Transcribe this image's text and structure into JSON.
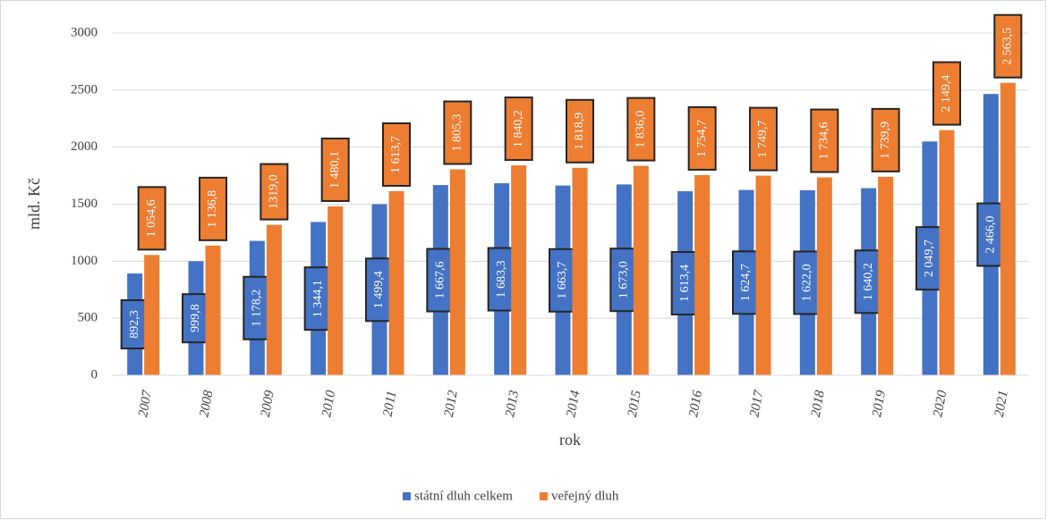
{
  "chart_data": {
    "type": "bar",
    "y_label": "mld. Kč",
    "x_label": "rok",
    "categories": [
      "2007",
      "2008",
      "2009",
      "2010",
      "2011",
      "2012",
      "2013",
      "2014",
      "2015",
      "2016",
      "2017",
      "2018",
      "2019",
      "2020",
      "2021"
    ],
    "series": [
      {
        "name": "státní dluh celkem",
        "color": "#4472c4",
        "values": [
          892.3,
          999.8,
          1178.2,
          1344.1,
          1499.4,
          1667.6,
          1683.3,
          1663.7,
          1673.0,
          1613.4,
          1624.7,
          1622.0,
          1640.2,
          2049.7,
          2466.0
        ],
        "value_labels": [
          "892,3",
          "999,8",
          "1 178,2",
          "1 344,1",
          "1 499,4",
          "1 667,6",
          "1 683,3",
          "1 663,7",
          "1 673,0",
          "1 613,4",
          "1 624,7",
          "1 622,0",
          "1 640,2",
          "2 049,7",
          "2 466,0"
        ]
      },
      {
        "name": "veřejný dluh",
        "color": "#ed7d31",
        "values": [
          1054.6,
          1136.8,
          1319.0,
          1480.1,
          1613.7,
          1805.3,
          1840.2,
          1818.9,
          1836.0,
          1754.7,
          1749.7,
          1734.6,
          1739.9,
          2149.4,
          2563.5
        ],
        "value_labels": [
          "1 054,6",
          "1 136,8",
          "1319,0",
          "1 480,1",
          "1 613,7",
          "1 805,3",
          "1 840,2",
          "1 818,9",
          "1 836,0",
          "1 754,7",
          "1 749,7",
          "1 734,6",
          "1 739,9",
          "2 149,4",
          "2 563,5"
        ]
      }
    ],
    "ylim": [
      0,
      3000
    ],
    "yticks": [
      0,
      500,
      1000,
      1500,
      2000,
      2500,
      3000
    ],
    "grid": true,
    "legend": "bottom"
  }
}
